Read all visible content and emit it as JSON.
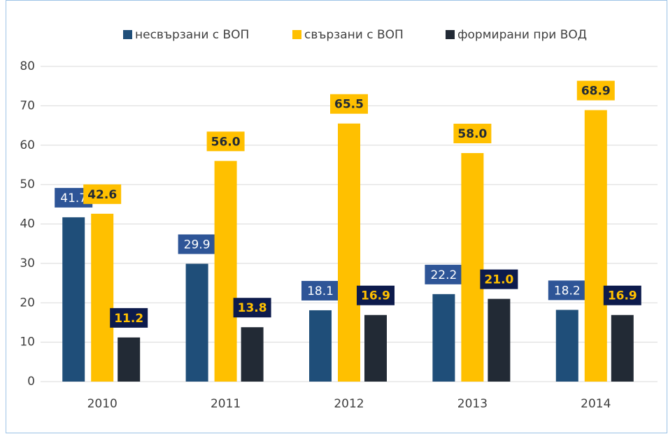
{
  "chart_data": {
    "type": "bar",
    "categories": [
      "2010",
      "2011",
      "2012",
      "2013",
      "2014"
    ],
    "series": [
      {
        "name": "несвързани с ВОП",
        "color": "#1f4e79",
        "values": [
          41.7,
          29.9,
          18.1,
          22.2,
          18.2
        ],
        "value_labels": [
          "41.7",
          "29.9",
          "18.1",
          "22.2",
          "18.2"
        ]
      },
      {
        "name": "свързани с ВОП",
        "color": "#ffc000",
        "values": [
          42.6,
          56,
          65.5,
          58,
          68.9
        ],
        "value_labels": [
          "42.6",
          "56.0",
          "65.5",
          "58.0",
          "68.9"
        ]
      },
      {
        "name": "формирани при  ВОД",
        "color": "#222a35",
        "values": [
          11.2,
          13.8,
          16.9,
          21,
          16.9
        ],
        "value_labels": [
          "11.2",
          "13.8",
          "16.9",
          "21.0",
          "16.9"
        ]
      }
    ],
    "ylim": [
      0,
      80
    ],
    "yticks": [
      0,
      10,
      20,
      30,
      40,
      50,
      60,
      70,
      80
    ],
    "grid": true,
    "legend": "top"
  }
}
